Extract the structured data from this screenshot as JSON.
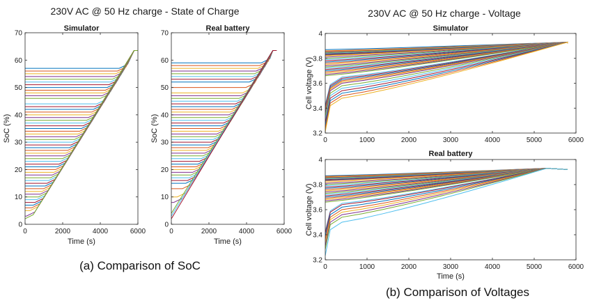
{
  "figure": {
    "soc_title": "230V AC @ 50 Hz charge - State of Charge",
    "voltage_title": "230V AC @ 50 Hz charge -  Voltage",
    "caption_a": "(a) Comparison of SoC",
    "caption_b": "(b) Comparison of Voltages"
  },
  "palette": [
    "#0072BD",
    "#D95319",
    "#EDB120",
    "#7E2F8E",
    "#77AC30",
    "#4DBEEE",
    "#A2142F"
  ],
  "chart_data": [
    {
      "id": "soc-sim",
      "type": "line",
      "title": "Simulator",
      "xlabel": "Time (s)",
      "ylabel": "SoC (%)",
      "xlim": [
        0,
        6000
      ],
      "ylim": [
        0,
        70
      ],
      "xticks": [
        0,
        2000,
        4000,
        6000
      ],
      "yticks": [
        0,
        10,
        20,
        30,
        40,
        50,
        60,
        70
      ],
      "grid": false,
      "end_point": [
        5800,
        63.5
      ],
      "plateau_end_x": 6000,
      "initial_soc": [
        57,
        56,
        55,
        54,
        53,
        52,
        51,
        50,
        49,
        48,
        47,
        46,
        44,
        43,
        42,
        41,
        40,
        39,
        38,
        37,
        36,
        35,
        34,
        33,
        32,
        31,
        30,
        29,
        28,
        27,
        26,
        25,
        24,
        23,
        22,
        21,
        20,
        19,
        18,
        17,
        16,
        15,
        14,
        13,
        12,
        11,
        10,
        9,
        8,
        7,
        6,
        5,
        3,
        2
      ]
    },
    {
      "id": "soc-real",
      "type": "line",
      "title": "Real battery",
      "xlabel": "Time (s)",
      "ylabel": "SoC (%)",
      "xlim": [
        0,
        6000
      ],
      "ylim": [
        0,
        70
      ],
      "xticks": [
        0,
        2000,
        4000,
        6000
      ],
      "yticks": [
        0,
        10,
        20,
        30,
        40,
        50,
        60,
        70
      ],
      "grid": false,
      "end_point": [
        5400,
        63.5
      ],
      "plateau_end_x": 5600,
      "initial_soc": [
        59,
        58,
        57,
        56,
        55,
        54,
        53,
        52,
        50,
        48,
        47,
        46,
        45,
        44,
        43,
        42,
        41,
        40,
        39,
        38,
        37,
        36,
        35,
        34,
        33,
        32,
        31,
        30,
        29,
        28,
        27,
        26,
        25,
        24,
        23,
        22,
        21,
        20,
        19,
        18,
        17,
        16,
        15,
        13,
        10,
        8,
        4,
        3,
        2
      ]
    },
    {
      "id": "volt-sim",
      "type": "line",
      "title": "Simulator",
      "xlabel": "",
      "ylabel": "Cell voltage (V)",
      "xlim": [
        0,
        6000
      ],
      "ylim": [
        3.2,
        4.0
      ],
      "xticks": [
        0,
        1000,
        2000,
        3000,
        4000,
        5000,
        6000
      ],
      "yticks": [
        3.2,
        3.4,
        3.6,
        3.8,
        4.0
      ],
      "grid": false,
      "end_point": [
        5800,
        3.93
      ],
      "initial_voltage": [
        3.87,
        3.86,
        3.855,
        3.85,
        3.845,
        3.84,
        3.835,
        3.83,
        3.825,
        3.82,
        3.81,
        3.8,
        3.79,
        3.78,
        3.77,
        3.76,
        3.75,
        3.74,
        3.73,
        3.72,
        3.71,
        3.7,
        3.69,
        3.68,
        3.67,
        3.66,
        3.65,
        3.64,
        3.63,
        3.62,
        3.61,
        3.6,
        3.58,
        3.56,
        3.54,
        3.52,
        3.5,
        3.48
      ]
    },
    {
      "id": "volt-real",
      "type": "line",
      "title": "Real battery",
      "xlabel": "Time (s)",
      "ylabel": "Cell voltage (V)",
      "xlim": [
        0,
        6000
      ],
      "ylim": [
        3.2,
        4.0
      ],
      "xticks": [
        0,
        1000,
        2000,
        3000,
        4000,
        5000,
        6000
      ],
      "yticks": [
        3.2,
        3.4,
        3.6,
        3.8,
        4.0
      ],
      "grid": false,
      "end_point": [
        5300,
        3.93
      ],
      "initial_voltage": [
        3.87,
        3.865,
        3.86,
        3.855,
        3.85,
        3.845,
        3.84,
        3.835,
        3.83,
        3.82,
        3.81,
        3.8,
        3.79,
        3.78,
        3.77,
        3.76,
        3.75,
        3.74,
        3.73,
        3.72,
        3.71,
        3.7,
        3.69,
        3.68,
        3.67,
        3.66,
        3.65,
        3.64,
        3.62,
        3.6,
        3.58,
        3.56,
        3.54,
        3.5
      ]
    }
  ]
}
